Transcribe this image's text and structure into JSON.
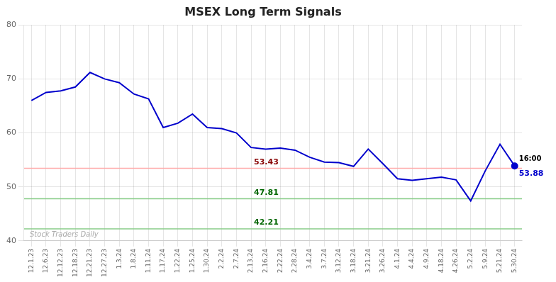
{
  "chart_data": {
    "type": "line",
    "title": "MSEX Long Term Signals",
    "categories": [
      "12.1.23",
      "12.6.23",
      "12.12.23",
      "12.18.23",
      "12.21.23",
      "12.27.23",
      "1.3.24",
      "1.8.24",
      "1.11.24",
      "1.17.24",
      "1.22.24",
      "1.25.24",
      "1.30.24",
      "2.2.24",
      "2.7.24",
      "2.13.24",
      "2.16.24",
      "2.22.24",
      "2.28.24",
      "3.4.24",
      "3.7.24",
      "3.12.24",
      "3.18.24",
      "3.21.24",
      "3.26.24",
      "4.1.24",
      "4.4.24",
      "4.9.24",
      "4.18.24",
      "4.26.24",
      "5.2.24",
      "5.9.24",
      "5.21.24",
      "5.30.24"
    ],
    "values": [
      66.0,
      67.5,
      67.8,
      68.5,
      71.2,
      70.0,
      69.3,
      67.2,
      66.3,
      61.0,
      61.8,
      63.5,
      61.0,
      60.8,
      60.0,
      57.3,
      57.0,
      57.2,
      56.8,
      55.5,
      54.6,
      54.5,
      53.8,
      57.0,
      54.3,
      51.5,
      51.2,
      51.5,
      51.8,
      51.3,
      47.4,
      53.0,
      57.9,
      53.88
    ],
    "color": "#0000cc",
    "ylim": [
      40,
      80
    ],
    "yticks": [
      40,
      50,
      60,
      70,
      80
    ],
    "grid": true,
    "reference_lines": [
      {
        "value": 53.43,
        "label": "53.43",
        "color": "#ffaaaa",
        "label_color": "#880000"
      },
      {
        "value": 47.81,
        "label": "47.81",
        "color": "#88cc88",
        "label_color": "#006600"
      },
      {
        "value": 42.21,
        "label": "42.21",
        "color": "#88cc88",
        "label_color": "#006600"
      }
    ],
    "last_point_labels": [
      {
        "text": "16:00",
        "color": "#000000"
      },
      {
        "text": "53.88",
        "color": "#0000cc"
      }
    ],
    "watermark": "Stock Traders Daily"
  }
}
